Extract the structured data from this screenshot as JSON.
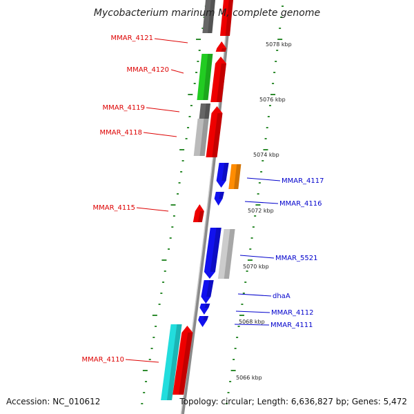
{
  "title": "Mycobacterium marinum M, complete genome",
  "footer": {
    "accession": "Accession: NC_010612",
    "topology": "Topology: circular; Length: 6,636,827 bp; Genes: 5,472"
  },
  "colors": {
    "forward_label": "#dd0000",
    "reverse_label": "#0000cc",
    "backbone": "#999999",
    "tick": "#2e8b2e"
  },
  "kbp_labels": [
    "5078 kbp",
    "5076 kbp",
    "5074 kbp",
    "5072 kbp",
    "5070 kbp",
    "5068 kbp",
    "5066 kbp"
  ],
  "left_labels": [
    "MMAR_4121",
    "MMAR_4120",
    "MMAR_4119",
    "MMAR_4118",
    "MMAR_4115",
    "MMAR_4110"
  ],
  "right_labels": [
    "MMAR_4117",
    "MMAR_4116",
    "MMAR_5521",
    "dhaA",
    "MMAR_4112",
    "MMAR_4111"
  ]
}
